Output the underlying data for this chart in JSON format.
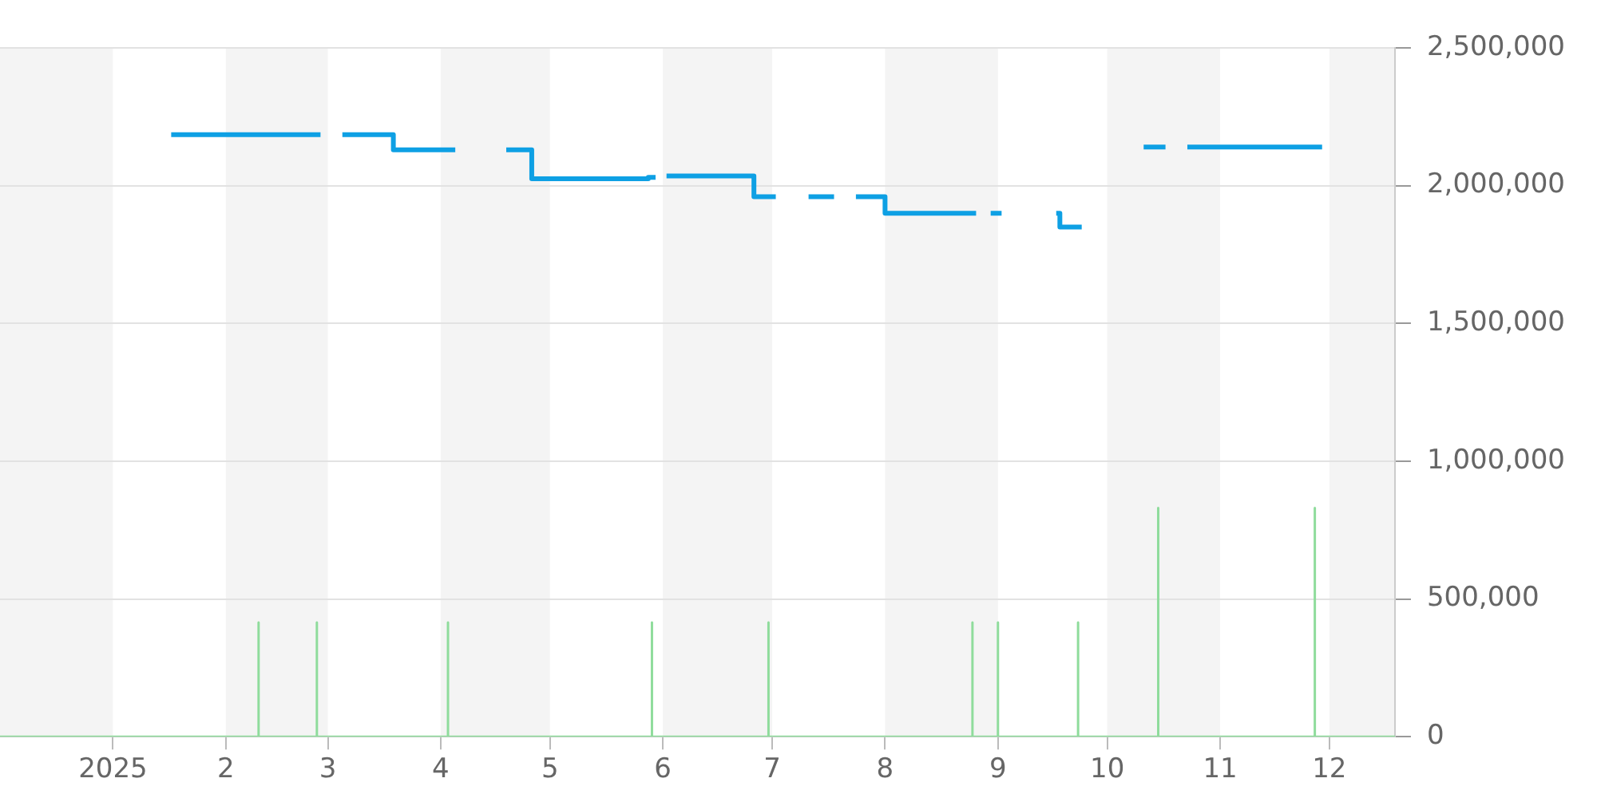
{
  "chart_data": {
    "type": "step",
    "xlim": [
      "2024-12-01",
      "2025-12-19"
    ],
    "xticks": [
      {
        "value": "2025-01-01",
        "label": "2025"
      },
      {
        "value": "2025-02-01",
        "label": "2"
      },
      {
        "value": "2025-03-01",
        "label": "3"
      },
      {
        "value": "2025-04-01",
        "label": "4"
      },
      {
        "value": "2025-05-01",
        "label": "5"
      },
      {
        "value": "2025-06-01",
        "label": "6"
      },
      {
        "value": "2025-07-01",
        "label": "7"
      },
      {
        "value": "2025-08-01",
        "label": "8"
      },
      {
        "value": "2025-09-01",
        "label": "9"
      },
      {
        "value": "2025-10-01",
        "label": "10"
      },
      {
        "value": "2025-11-01",
        "label": "11"
      },
      {
        "value": "2025-12-01",
        "label": "12"
      }
    ],
    "ylim": [
      0,
      2500000
    ],
    "yticks": [
      0,
      {
        "value": 500000,
        "label": "500,000"
      },
      {
        "value": 1000000,
        "label": "1,000,000"
      },
      {
        "value": 1500000,
        "label": "1,500,000"
      },
      {
        "value": 2000000,
        "label": "2,000,000"
      },
      {
        "value": 2500000,
        "label": "2,500,000"
      }
    ],
    "grid": "y",
    "legend": false,
    "marker": "none",
    "line_style": "solid",
    "bands": [
      {
        "axis": "x",
        "from": "2024-12-01",
        "to": "2025-01-01",
        "color": "#f4f4f4"
      },
      {
        "axis": "x",
        "from": "2025-02-01",
        "to": "2025-03-01",
        "color": "#f4f4f4"
      },
      {
        "axis": "x",
        "from": "2025-04-01",
        "to": "2025-05-01",
        "color": "#f4f4f4"
      },
      {
        "axis": "x",
        "from": "2025-06-01",
        "to": "2025-07-01",
        "color": "#f4f4f4"
      },
      {
        "axis": "x",
        "from": "2025-08-01",
        "to": "2025-09-01",
        "color": "#f4f4f4"
      },
      {
        "axis": "x",
        "from": "2025-10-01",
        "to": "2025-11-01",
        "color": "#f4f4f4"
      },
      {
        "axis": "x",
        "from": "2025-12-01",
        "to": "2025-12-19",
        "color": "#f4f4f4"
      }
    ],
    "series": [
      {
        "type": "line",
        "color": "#8fdc9c",
        "x": [
          "2024-12-01",
          "2025-02-10",
          "2025-02-10",
          "2025-02-10",
          "2025-02-26",
          "2025-02-26",
          "2025-02-26",
          "2025-04-03",
          "2025-04-03",
          "2025-04-03",
          "2025-05-29",
          "2025-05-29",
          "2025-05-29",
          "2025-06-30",
          "2025-06-30",
          "2025-06-30",
          "2025-08-25",
          "2025-08-25",
          "2025-08-25",
          "2025-09-01",
          "2025-09-01",
          "2025-09-01",
          "2025-09-23",
          "2025-09-23",
          "2025-09-23",
          "2025-10-15",
          "2025-10-15",
          "2025-10-15",
          "2025-11-27",
          "2025-11-27",
          "2025-11-27",
          "2025-12-19"
        ],
        "values": [
          0,
          0,
          415000,
          0,
          0,
          415000,
          0,
          0,
          415000,
          0,
          0,
          415000,
          0,
          0,
          415000,
          0,
          0,
          415000,
          0,
          0,
          415000,
          0,
          0,
          415000,
          0,
          0,
          830000,
          0,
          0,
          830000,
          0,
          0
        ]
      },
      {
        "color": "#0ea0e4",
        "x": [
          "2025-01-17",
          "2025-02-27",
          "2025-03-02",
          "2025-03-05",
          "2025-03-19",
          "2025-04-05",
          "2025-04-12",
          "2025-04-19",
          "2025-04-26",
          "2025-05-27",
          "2025-05-28",
          "2025-05-30",
          "2025-05-31",
          "2025-06-02",
          "2025-06-26",
          "2025-07-02",
          "2025-07-06",
          "2025-07-11",
          "2025-07-18",
          "2025-07-21",
          "2025-07-24",
          "2025-08-01",
          "2025-08-26",
          "2025-08-28",
          "2025-08-30",
          "2025-09-02",
          "2025-09-10",
          "2025-09-17",
          "2025-09-18",
          "2025-09-24",
          "2025-10-03",
          "2025-10-11",
          "2025-10-17",
          "2025-10-20",
          "2025-10-23",
          "2025-11-29"
        ],
        "values": [
          2185000,
          2185000,
          null,
          2185000,
          2130000,
          2130000,
          null,
          2130000,
          2025000,
          2025000,
          2030000,
          2030000,
          null,
          2035000,
          1960000,
          1960000,
          null,
          1960000,
          1960000,
          null,
          1960000,
          1900000,
          1900000,
          null,
          1900000,
          1900000,
          null,
          1900000,
          1850000,
          1850000,
          null,
          2140000,
          2140000,
          null,
          2140000,
          2140000
        ]
      }
    ]
  }
}
